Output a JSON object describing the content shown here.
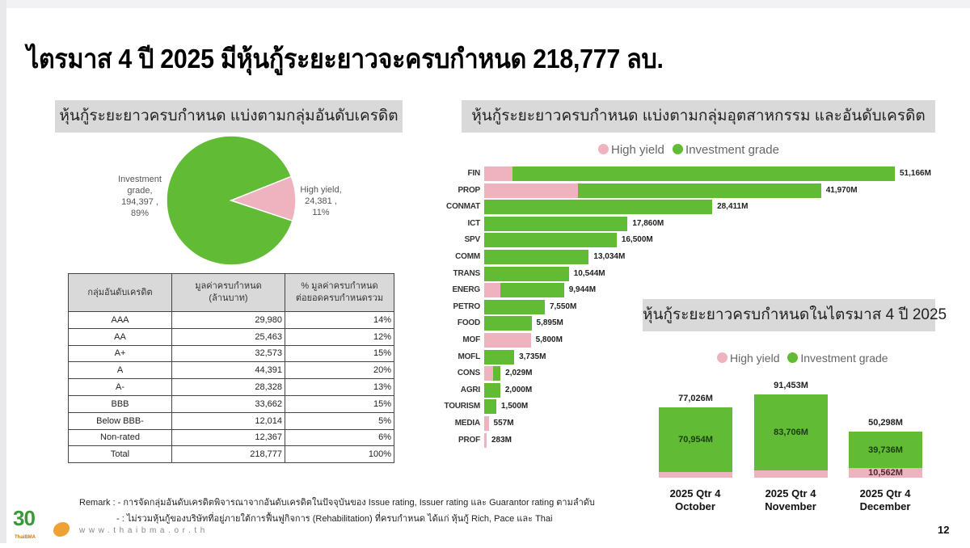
{
  "slide": {
    "title": "ไตรมาส 4 ปี 2025 มีหุ้นกู้ระยะยาวจะครบกำหนด 218,777 ลบ.",
    "page_number": "12",
    "website": "www.thaibma.or.th",
    "logo": {
      "text": "30",
      "sub": "ThaiBMA"
    }
  },
  "colors": {
    "high_yield": "#efb3bf",
    "investment_grade": "#62bb35",
    "panel_bg": "#d9d9d9"
  },
  "pie_panel": {
    "title": "หุ้นกู้ระยะยาวครบกำหนด แบ่งตามกลุ่มอันดับเครดิต",
    "labels": {
      "ig": [
        "Investment",
        "grade,",
        "194,397 ,",
        "89%"
      ],
      "hy": [
        "High yield,",
        "24,381 ,",
        "11%"
      ]
    }
  },
  "credit_table": {
    "headers": [
      "กลุ่มอันดับเครดิต",
      "มูลค่าครบกำหนด (ล้านบาท)",
      "% มูลค่าครบกำหนด ต่อยอดครบกำหนดรวม"
    ],
    "header_lines": [
      [
        "กลุ่มอันดับเครดิต"
      ],
      [
        "มูลค่าครบกำหนด",
        "(ล้านบาท)"
      ],
      [
        "% มูลค่าครบกำหนด",
        "ต่อยอดครบกำหนดรวม"
      ]
    ],
    "rows": [
      {
        "group": "AAA",
        "value": "29,980",
        "pct": "14%"
      },
      {
        "group": "AA",
        "value": "25,463",
        "pct": "12%"
      },
      {
        "group": "A+",
        "value": "32,573",
        "pct": "15%"
      },
      {
        "group": "A",
        "value": "44,391",
        "pct": "20%"
      },
      {
        "group": "A-",
        "value": "28,328",
        "pct": "13%"
      },
      {
        "group": "BBB",
        "value": "33,662",
        "pct": "15%"
      },
      {
        "group": "Below BBB-",
        "value": "12,014",
        "pct": "5%"
      },
      {
        "group": "Non-rated",
        "value": "12,367",
        "pct": "6%"
      },
      {
        "group": "Total",
        "value": "218,777",
        "pct": "100%"
      }
    ]
  },
  "industry_panel": {
    "title": "หุ้นกู้ระยะยาวครบกำหนด แบ่งตามกลุ่มอุตสาหกรรม และอันดับเครดิต",
    "legend": [
      "High yield",
      "Investment grade"
    ]
  },
  "q4_panel": {
    "title": "หุ้นกู้ระยะยาวครบกำหนดในไตรมาส 4 ปี 2025",
    "legend": [
      "High yield",
      "Investment grade"
    ]
  },
  "remark": {
    "line1": "Remark : - การจัดกลุ่มอันดับเครดิตพิจารณาจากอันดับเครดิตในปัจจุบันของ Issue rating, Issuer rating และ Guarantor rating ตามลำดับ",
    "line2": "- : ไม่รวมหุ้นกู้ของบริษัทที่อยู่ภายใต้การฟื้นฟูกิจการ (Rehabilitation) ที่ครบกำหนด ได้แก่ หุ้นกู้ Rich, Pace และ Thai"
  },
  "chart_data": [
    {
      "type": "pie",
      "title": "หุ้นกู้ระยะยาวครบกำหนด แบ่งตามกลุ่มอันดับเครดิต",
      "categories": [
        "Investment grade",
        "High yield"
      ],
      "values": [
        194397,
        24381
      ],
      "percentages": [
        89,
        11
      ],
      "unit": "ล้านบาท"
    },
    {
      "type": "table",
      "title": "กลุ่มอันดับเครดิต",
      "columns": [
        "กลุ่มอันดับเครดิต",
        "มูลค่าครบกำหนด (ล้านบาท)",
        "% มูลค่าครบกำหนด ต่อยอดครบกำหนดรวม"
      ],
      "rows": [
        [
          "AAA",
          29980,
          14
        ],
        [
          "AA",
          25463,
          12
        ],
        [
          "A+",
          32573,
          15
        ],
        [
          "A",
          44391,
          20
        ],
        [
          "A-",
          28328,
          13
        ],
        [
          "BBB",
          33662,
          15
        ],
        [
          "Below BBB-",
          12014,
          5
        ],
        [
          "Non-rated",
          12367,
          6
        ],
        [
          "Total",
          218777,
          100
        ]
      ]
    },
    {
      "type": "bar",
      "orientation": "horizontal",
      "stacked": true,
      "title": "หุ้นกู้ระยะยาวครบกำหนด แบ่งตามกลุ่มอุตสาหกรรม และอันดับเครดิต",
      "legend": [
        "High yield",
        "Investment grade"
      ],
      "legend_position": "top",
      "categories": [
        "FIN",
        "PROP",
        "CONMAT",
        "ICT",
        "SPV",
        "COMM",
        "TRANS",
        "ENERG",
        "PETRO",
        "FOOD",
        "MOF",
        "MOFL",
        "CONS",
        "AGRI",
        "TOURISM",
        "MEDIA",
        "PROF"
      ],
      "totals": [
        51166,
        41970,
        28411,
        17860,
        16500,
        13034,
        10544,
        9944,
        7550,
        5895,
        5800,
        3735,
        2029,
        2000,
        1500,
        557,
        283
      ],
      "series": [
        {
          "name": "High yield",
          "values": [
            3500,
            11700,
            0,
            0,
            0,
            0,
            0,
            2000,
            0,
            0,
            5800,
            0,
            1100,
            0,
            0,
            557,
            283
          ]
        },
        {
          "name": "Investment grade",
          "values": [
            47666,
            30270,
            28411,
            17860,
            16500,
            13034,
            10544,
            7944,
            7550,
            5895,
            0,
            3735,
            929,
            2000,
            1500,
            0,
            0
          ]
        }
      ],
      "value_labels": [
        "51,166M",
        "41,970M",
        "28,411M",
        "17,860M",
        "16,500M",
        "13,034M",
        "10,544M",
        "9,944M",
        "7,550M",
        "5,895M",
        "5,800M",
        "3,735M",
        "2,029M",
        "2,000M",
        "1,500M",
        "557M",
        "283M"
      ],
      "unit": "M"
    },
    {
      "type": "bar",
      "orientation": "vertical",
      "stacked": true,
      "title": "หุ้นกู้ระยะยาวครบกำหนดในไตรมาส 4 ปี 2025",
      "legend": [
        "High yield",
        "Investment grade"
      ],
      "legend_position": "top",
      "categories": [
        "2025 Qtr 4 October",
        "2025 Qtr 4 November",
        "2025 Qtr 4 December"
      ],
      "series": [
        {
          "name": "High yield",
          "values": [
            6072,
            7747,
            10562
          ]
        },
        {
          "name": "Investment grade",
          "values": [
            70954,
            83706,
            39736
          ]
        }
      ],
      "totals": [
        77026,
        91453,
        50298
      ],
      "unit": "M"
    }
  ],
  "hbars": [
    {
      "cat": "FIN",
      "hy": 3500,
      "ig": 47666,
      "label": "51,166M"
    },
    {
      "cat": "PROP",
      "hy": 11700,
      "ig": 30270,
      "label": "41,970M"
    },
    {
      "cat": "CONMAT",
      "hy": 0,
      "ig": 28411,
      "label": "28,411M"
    },
    {
      "cat": "ICT",
      "hy": 0,
      "ig": 17860,
      "label": "17,860M"
    },
    {
      "cat": "SPV",
      "hy": 0,
      "ig": 16500,
      "label": "16,500M"
    },
    {
      "cat": "COMM",
      "hy": 0,
      "ig": 13034,
      "label": "13,034M"
    },
    {
      "cat": "TRANS",
      "hy": 0,
      "ig": 10544,
      "label": "10,544M"
    },
    {
      "cat": "ENERG",
      "hy": 2000,
      "ig": 7944,
      "label": "9,944M"
    },
    {
      "cat": "PETRO",
      "hy": 0,
      "ig": 7550,
      "label": "7,550M"
    },
    {
      "cat": "FOOD",
      "hy": 0,
      "ig": 5895,
      "label": "5,895M"
    },
    {
      "cat": "MOF",
      "hy": 5800,
      "ig": 0,
      "label": "5,800M"
    },
    {
      "cat": "MOFL",
      "hy": 0,
      "ig": 3735,
      "label": "3,735M"
    },
    {
      "cat": "CONS",
      "hy": 1100,
      "ig": 929,
      "label": "2,029M"
    },
    {
      "cat": "AGRI",
      "hy": 0,
      "ig": 2000,
      "label": "2,000M"
    },
    {
      "cat": "TOURISM",
      "hy": 0,
      "ig": 1500,
      "label": "1,500M"
    },
    {
      "cat": "MEDIA",
      "hy": 557,
      "ig": 0,
      "label": "557M"
    },
    {
      "cat": "PROF",
      "hy": 283,
      "ig": 0,
      "label": "283M"
    }
  ],
  "vbars": [
    {
      "line1": "2025 Qtr 4",
      "line2": "October",
      "hy": 6072,
      "ig": 70954,
      "ig_label": "70,954M",
      "hy_label": "",
      "total_label": "77,026M"
    },
    {
      "line1": "2025 Qtr 4",
      "line2": "November",
      "hy": 7747,
      "ig": 83706,
      "ig_label": "83,706M",
      "hy_label": "",
      "total_label": "91,453M"
    },
    {
      "line1": "2025 Qtr 4",
      "line2": "December",
      "hy": 10562,
      "ig": 39736,
      "ig_label": "39,736M",
      "hy_label": "10,562M",
      "total_label": "50,298M"
    }
  ]
}
